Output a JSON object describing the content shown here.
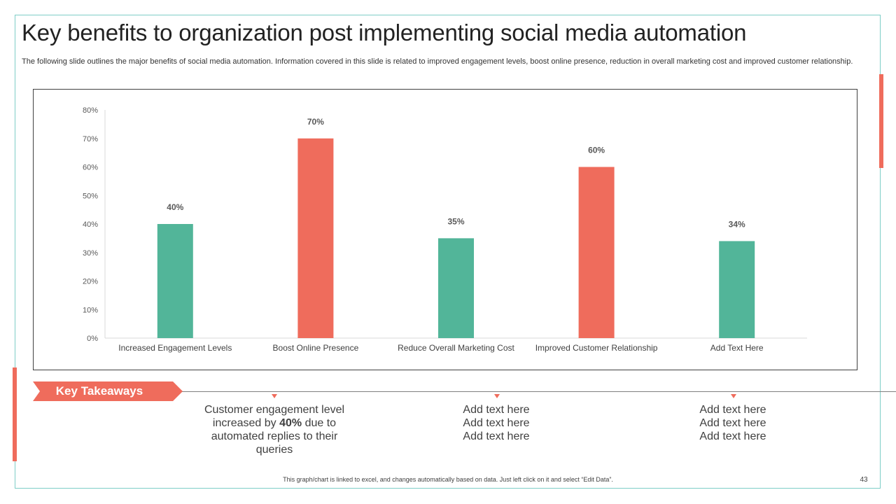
{
  "title": "Key benefits to organization post implementing social media automation",
  "subtitle": "The following slide outlines the major benefits of social media automation. Information covered in this slide is related to improved engagement levels, boost online presence, reduction in overall marketing cost and improved customer relationship.",
  "colors": {
    "teal": "#52b599",
    "coral": "#ef6c5c",
    "frame": "#7ecdc7"
  },
  "chart_data": {
    "type": "bar",
    "categories": [
      "Increased Engagement Levels",
      "Boost Online Presence",
      "Reduce Overall Marketing Cost",
      "Improved Customer Relationship",
      "Add Text Here"
    ],
    "values": [
      40,
      70,
      35,
      60,
      34
    ],
    "data_labels": [
      "40%",
      "70%",
      "35%",
      "60%",
      "34%"
    ],
    "bar_colors": [
      "#52b599",
      "#ef6c5c",
      "#52b599",
      "#ef6c5c",
      "#52b599"
    ],
    "ylim": [
      0,
      80
    ],
    "yticks": [
      "0%",
      "10%",
      "20%",
      "30%",
      "40%",
      "50%",
      "60%",
      "70%",
      "80%"
    ],
    "grid": false,
    "legend": "none"
  },
  "takeaways": {
    "label": "Key Takeaways",
    "item1": {
      "before": "Customer engagement level increased by ",
      "bold": "40%",
      "after": " due to automated replies to their queries"
    },
    "item2": [
      "Add text here",
      "Add text here",
      "Add text here"
    ],
    "item3": [
      "Add text here",
      "Add text here",
      "Add text here"
    ]
  },
  "footnote": "This graph/chart is linked to excel, and changes automatically based on data. Just left click on it and select “Edit Data”.",
  "page_number": "43"
}
